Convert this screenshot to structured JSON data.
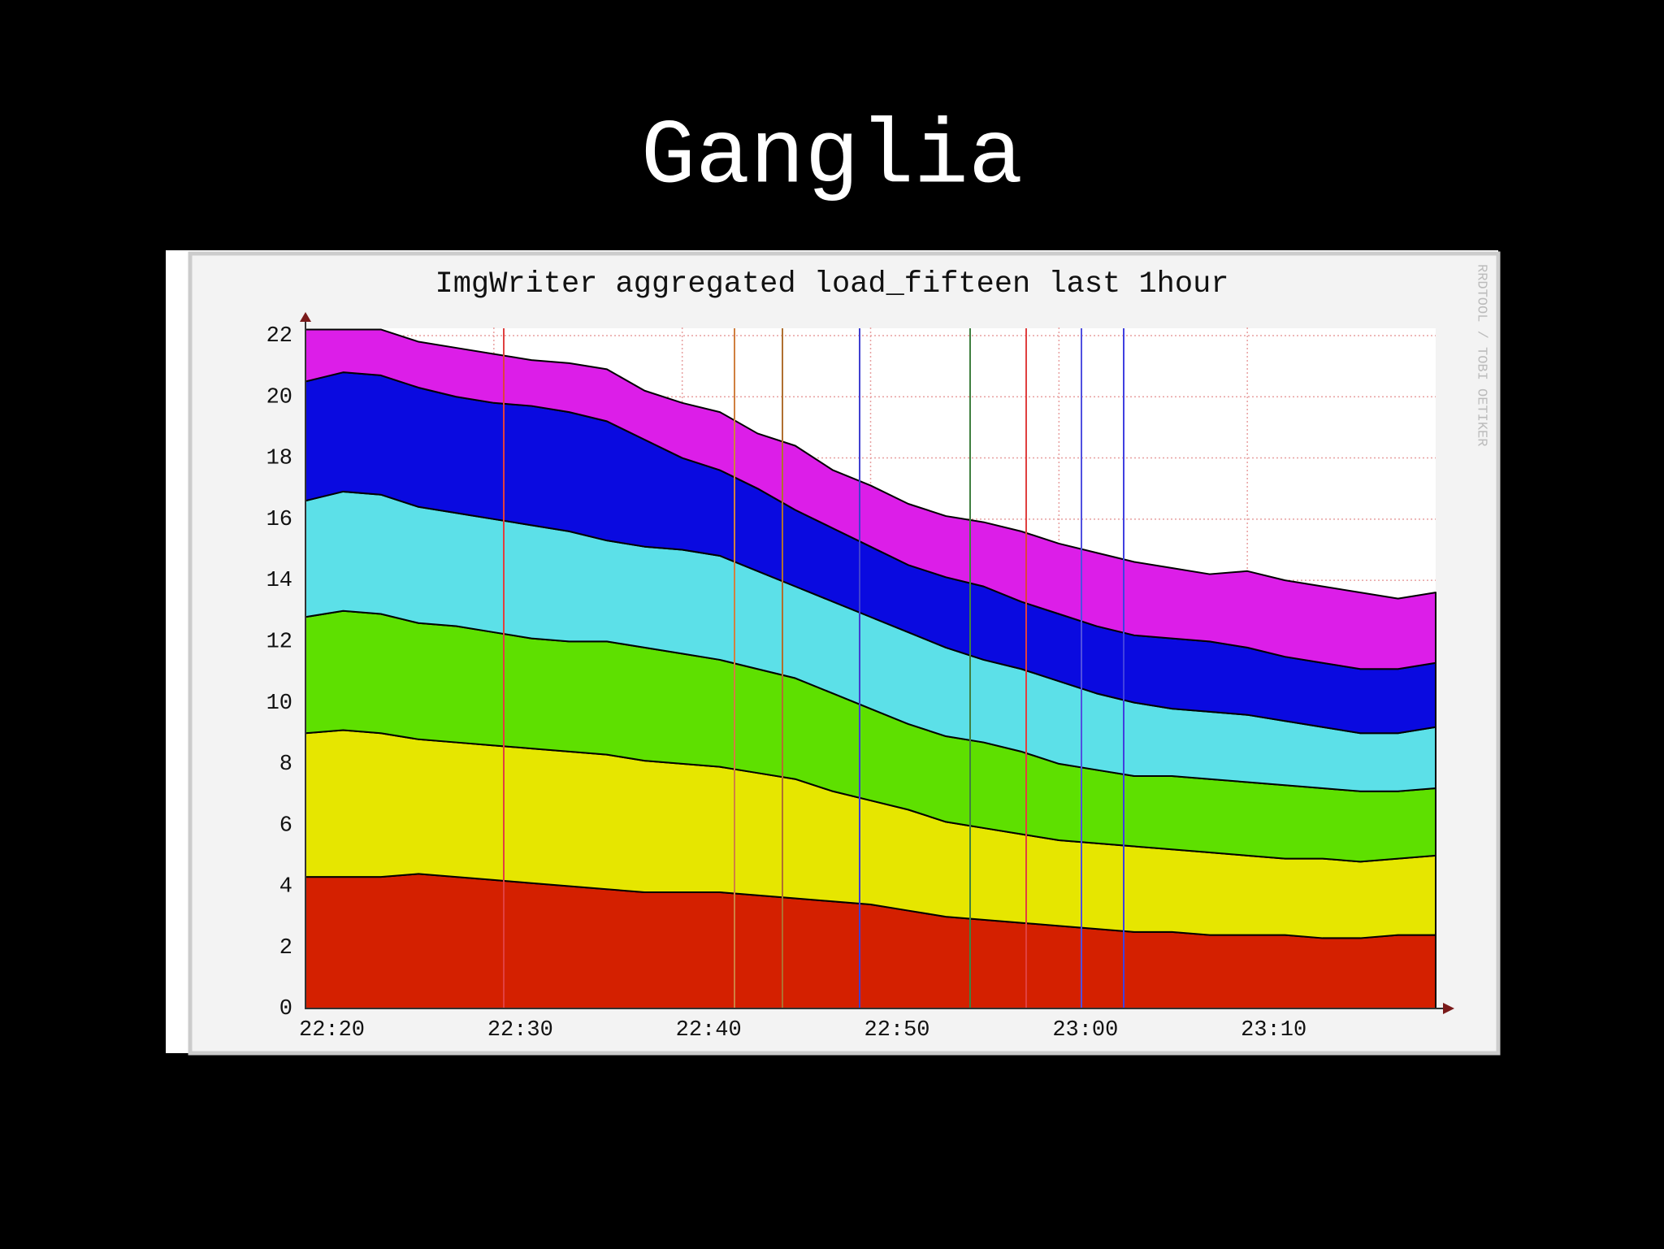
{
  "title": "Ganglia",
  "chart_data": {
    "type": "area",
    "stacked": true,
    "title": "ImgWriter aggregated load_fifteen last 1hour",
    "watermark": "RRDTOOL / TOBI OETIKER",
    "categories": [
      "22:20",
      null,
      null,
      null,
      null,
      "22:30",
      null,
      null,
      null,
      null,
      "22:40",
      null,
      null,
      null,
      null,
      "22:50",
      null,
      null,
      null,
      null,
      "23:00",
      null,
      null,
      null,
      null,
      "23:10",
      null,
      null,
      null,
      null,
      null
    ],
    "ylim": [
      0,
      22
    ],
    "yticks": [
      0,
      2,
      4,
      6,
      8,
      10,
      12,
      14,
      16,
      18,
      20,
      22
    ],
    "grid": true,
    "series": [
      {
        "color": "#d42000",
        "values": [
          4.3,
          4.3,
          4.3,
          4.4,
          4.3,
          4.2,
          4.1,
          4.0,
          3.9,
          3.8,
          3.8,
          3.8,
          3.7,
          3.6,
          3.5,
          3.4,
          3.2,
          3.0,
          2.9,
          2.8,
          2.7,
          2.6,
          2.5,
          2.5,
          2.4,
          2.4,
          2.4,
          2.3,
          2.3,
          2.4,
          2.4
        ]
      },
      {
        "color": "#e6e600",
        "values": [
          4.7,
          4.8,
          4.7,
          4.4,
          4.4,
          4.4,
          4.4,
          4.4,
          4.4,
          4.3,
          4.2,
          4.1,
          4.0,
          3.9,
          3.6,
          3.4,
          3.3,
          3.1,
          3.0,
          2.9,
          2.8,
          2.8,
          2.8,
          2.7,
          2.7,
          2.6,
          2.5,
          2.6,
          2.5,
          2.5,
          2.6
        ]
      },
      {
        "color": "#5ee000",
        "values": [
          3.8,
          3.9,
          3.9,
          3.8,
          3.8,
          3.7,
          3.6,
          3.6,
          3.7,
          3.7,
          3.6,
          3.5,
          3.4,
          3.3,
          3.2,
          3.0,
          2.8,
          2.8,
          2.8,
          2.7,
          2.5,
          2.4,
          2.3,
          2.4,
          2.4,
          2.4,
          2.4,
          2.3,
          2.3,
          2.2,
          2.2
        ]
      },
      {
        "color": "#5ce0e8",
        "values": [
          3.8,
          3.9,
          3.9,
          3.8,
          3.7,
          3.7,
          3.7,
          3.6,
          3.3,
          3.3,
          3.4,
          3.4,
          3.2,
          3.0,
          3.0,
          3.0,
          3.0,
          2.9,
          2.7,
          2.7,
          2.7,
          2.5,
          2.4,
          2.2,
          2.2,
          2.2,
          2.1,
          2.0,
          1.9,
          1.9,
          2.0
        ]
      },
      {
        "color": "#0a0ae0",
        "values": [
          3.9,
          3.9,
          3.9,
          3.9,
          3.8,
          3.8,
          3.9,
          3.9,
          3.9,
          3.5,
          3.0,
          2.8,
          2.7,
          2.5,
          2.4,
          2.3,
          2.2,
          2.3,
          2.4,
          2.2,
          2.2,
          2.2,
          2.2,
          2.3,
          2.3,
          2.2,
          2.1,
          2.1,
          2.1,
          2.1,
          2.1
        ]
      },
      {
        "color": "#dc1ee8",
        "values": [
          1.7,
          1.4,
          1.5,
          1.5,
          1.6,
          1.6,
          1.5,
          1.6,
          1.7,
          1.6,
          1.8,
          1.9,
          1.8,
          2.1,
          1.9,
          2.0,
          2.0,
          2.0,
          2.1,
          2.3,
          2.3,
          2.4,
          2.4,
          2.3,
          2.2,
          2.5,
          2.5,
          2.5,
          2.5,
          2.3,
          2.3
        ]
      }
    ]
  }
}
